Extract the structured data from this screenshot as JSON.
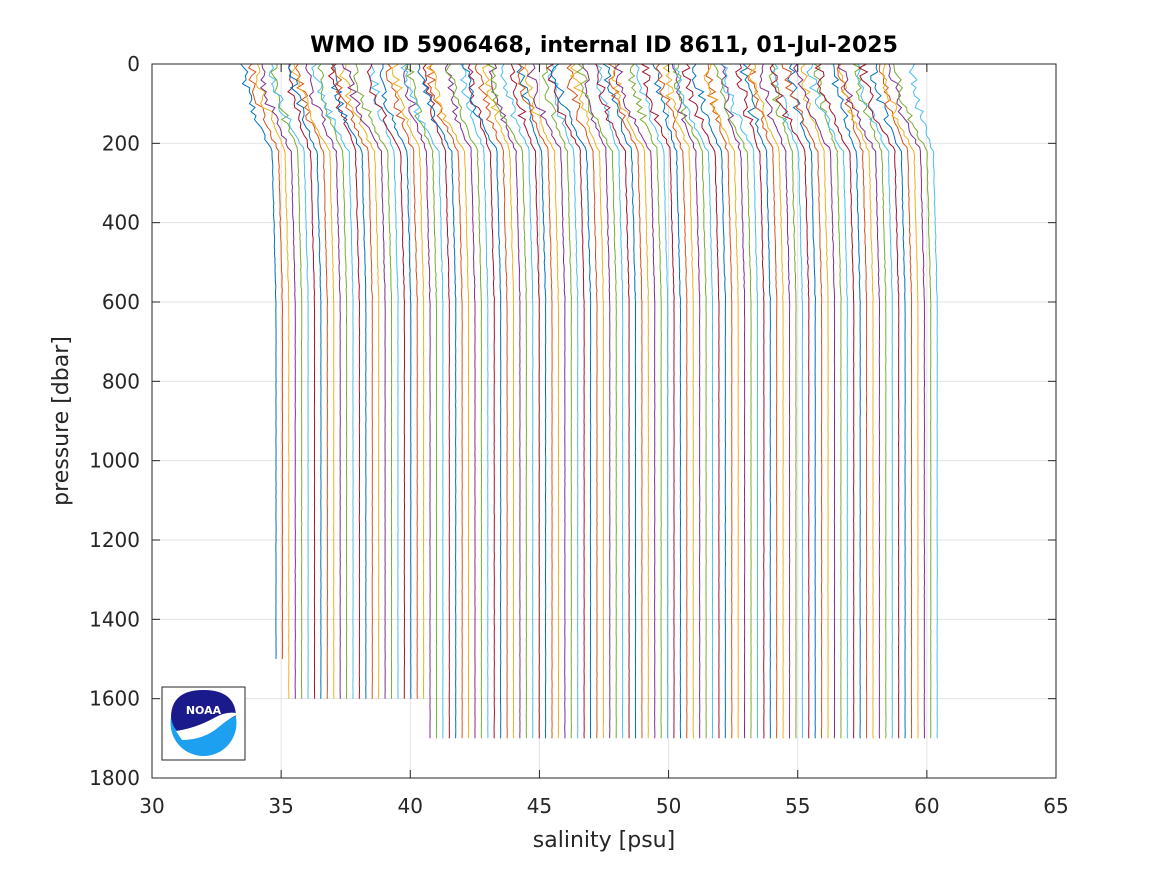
{
  "chart_data": {
    "type": "line",
    "title": "WMO ID 5906468, internal ID 8611, 01-Jul-2025",
    "xlabel": "salinity [psu]",
    "ylabel": "pressure [dbar]",
    "xlim": [
      30,
      65
    ],
    "ylim": [
      0,
      1800
    ],
    "y_reversed": true,
    "grid": true,
    "xticks": [
      30,
      35,
      40,
      45,
      50,
      55,
      60,
      65
    ],
    "yticks": [
      0,
      200,
      400,
      600,
      800,
      1000,
      1200,
      1400,
      1600,
      1800
    ],
    "series_description_offsets": {
      "profile_count": 104,
      "first_surface_salinity": 34.1,
      "offset_step_psu": 0.25,
      "deep_value_first": 34.8,
      "deep_value_last": 60.4
    },
    "max_pressure_groups": [
      {
        "profiles": [
          0,
          1
        ],
        "max_pressure": 1500
      },
      {
        "profiles": [
          2,
          3,
          4,
          5,
          6,
          7,
          8,
          9,
          10,
          11,
          12,
          13,
          14,
          15,
          16,
          17,
          18,
          19,
          20,
          21,
          22,
          23
        ],
        "max_pressure": 1600
      },
      {
        "profiles": [
          24
        ],
        "max_pressure": 1700
      }
    ],
    "line_colors": [
      "#0072BD",
      "#D95319",
      "#EDB120",
      "#7E2F8E",
      "#77AC30",
      "#4DBEEE",
      "#A2142F"
    ]
  },
  "logo": {
    "name": "NOAA",
    "text": "NOAA",
    "colors": {
      "navy": "#1a1a8c",
      "blue": "#1ea0f0",
      "white": "#ffffff"
    }
  }
}
